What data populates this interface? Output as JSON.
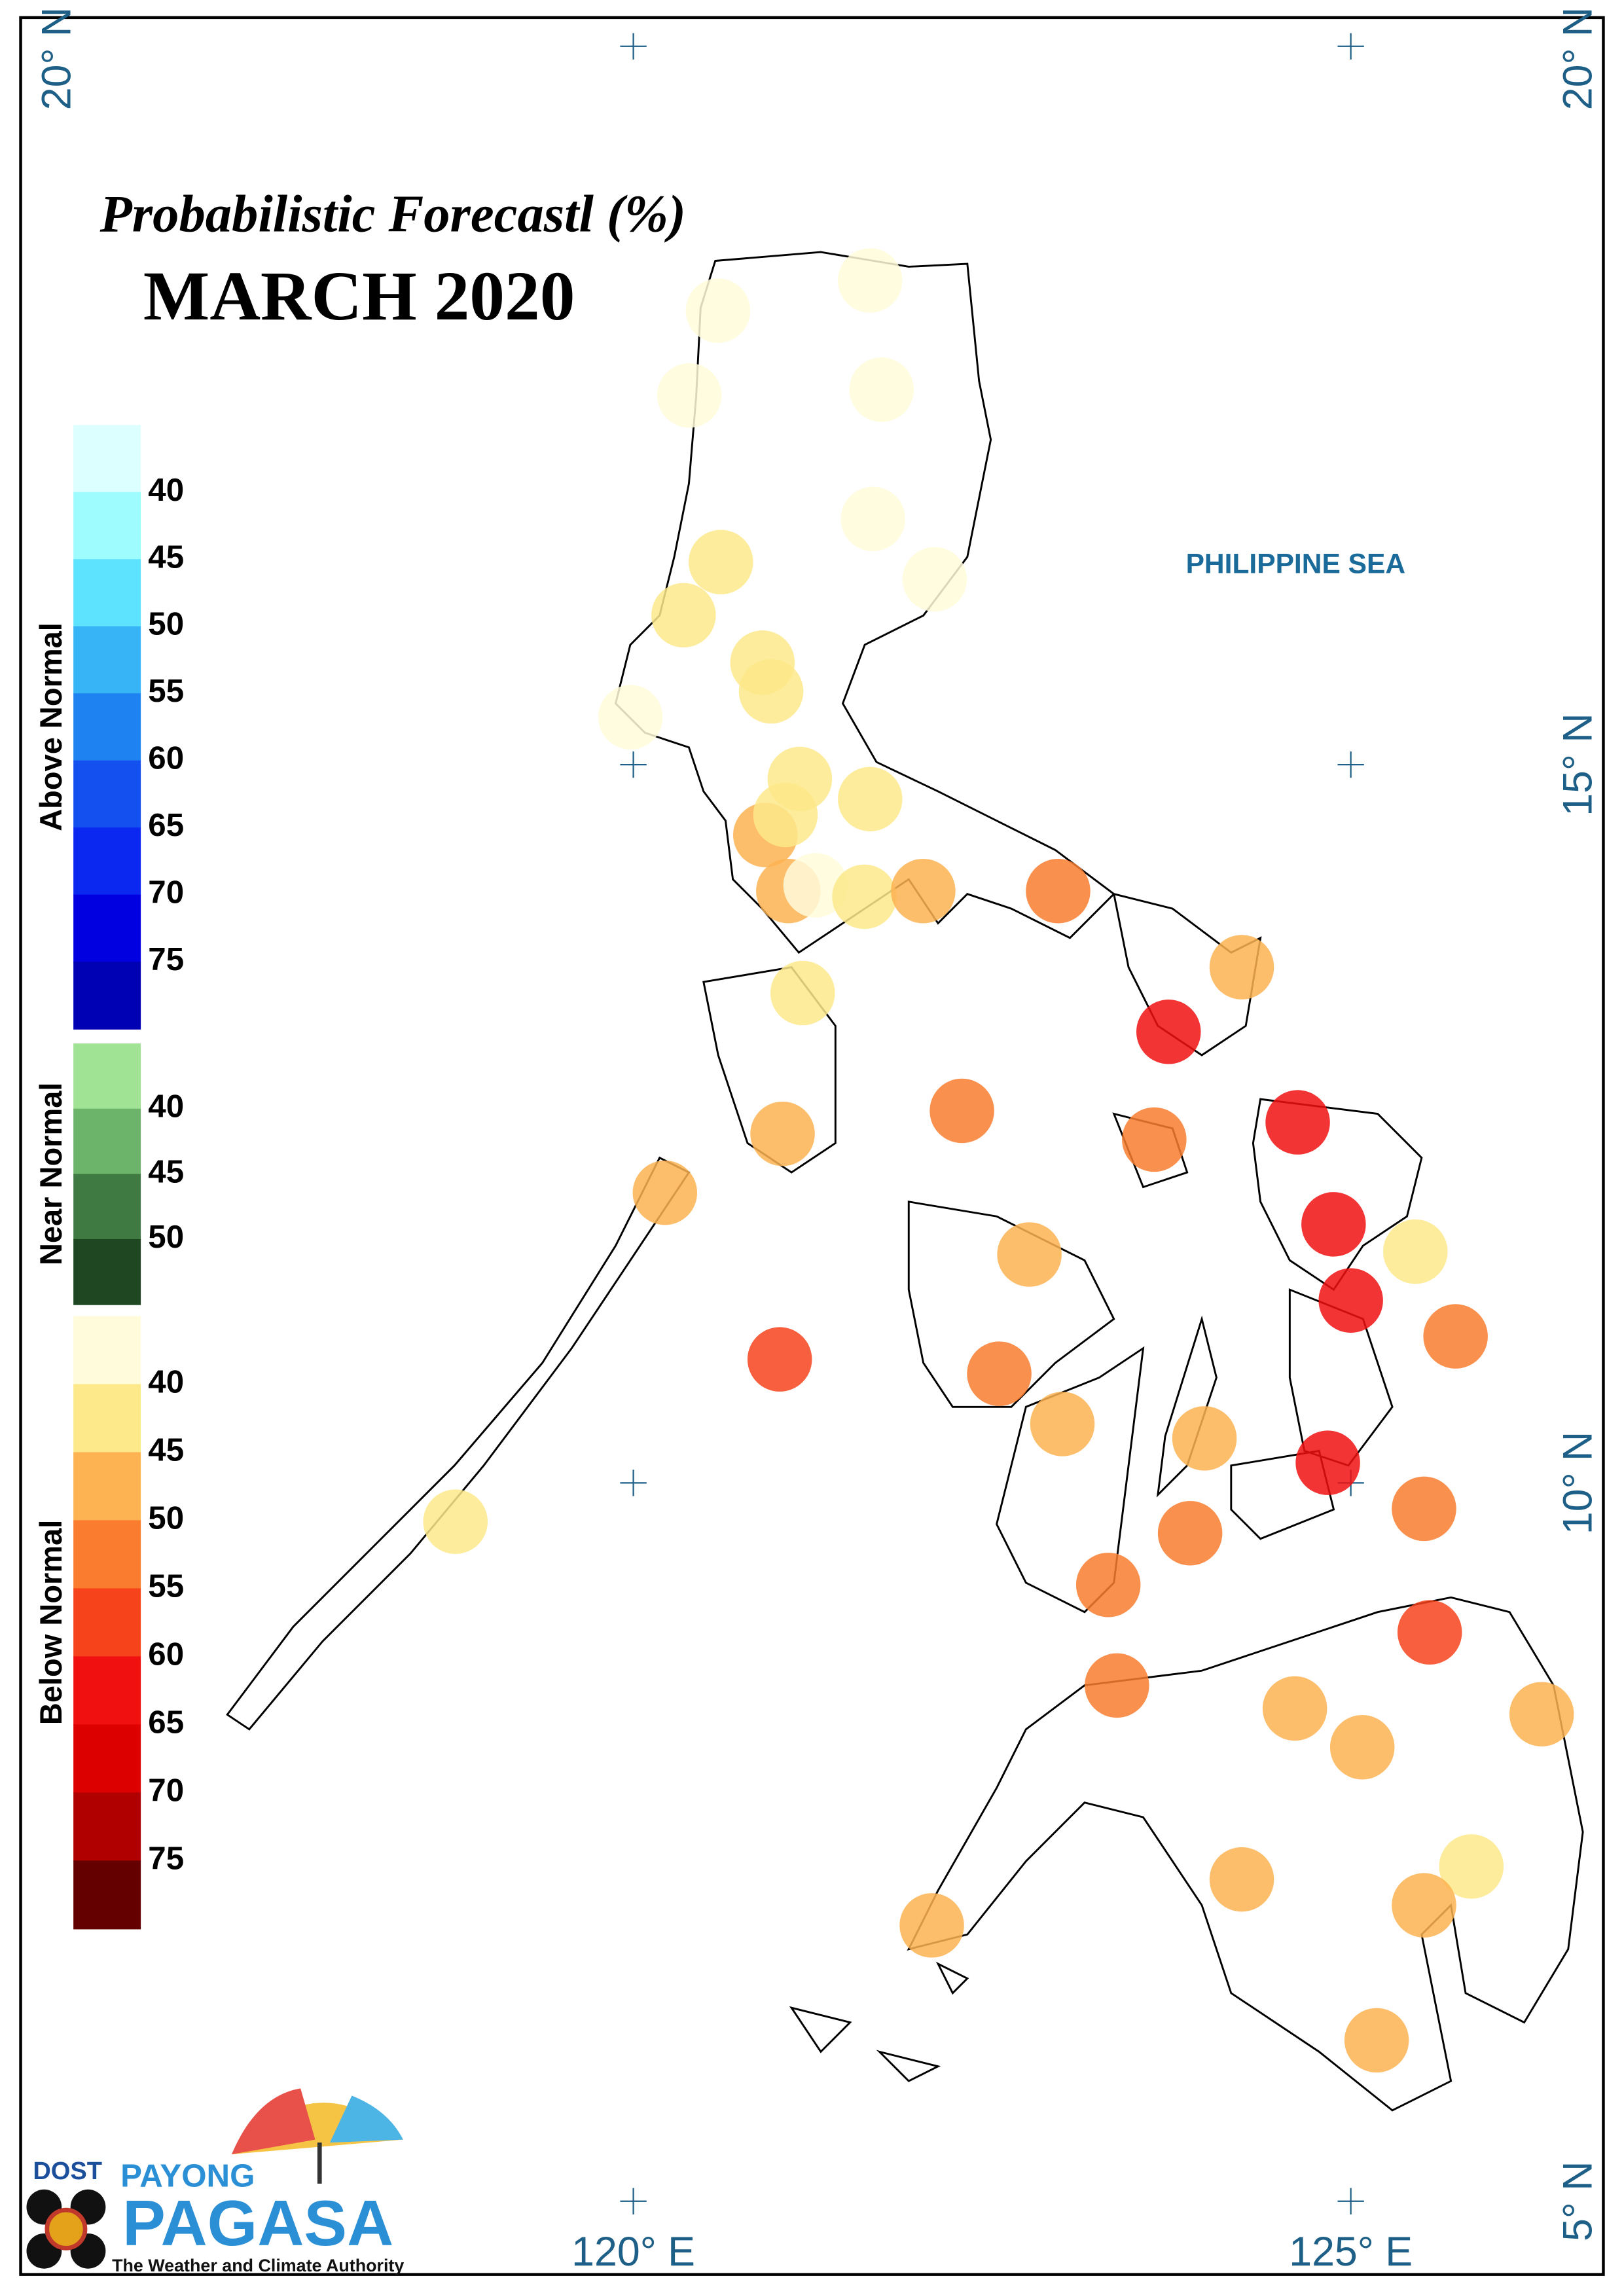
{
  "title": "Probabilistic Forecastl (%)",
  "subtitle": "MARCH 2020",
  "region_label": "PHILIPPINE SEA",
  "map": {
    "xlim": [
      115.73,
      126.76
    ],
    "ylim": [
      4.49,
      20.2
    ],
    "xticks": [
      {
        "value": 120,
        "label": "120° E"
      },
      {
        "value": 125,
        "label": "125° E"
      }
    ],
    "yticks": [
      {
        "value": 5,
        "label": "5° N"
      },
      {
        "value": 10,
        "label": "10° N"
      },
      {
        "value": 15,
        "label": "15° N"
      },
      {
        "value": 20,
        "label": "20° N"
      }
    ],
    "stations": [
      {
        "lon": 121.65,
        "lat": 18.37,
        "value": 38
      },
      {
        "lon": 120.59,
        "lat": 18.16,
        "value": 38
      },
      {
        "lon": 120.39,
        "lat": 17.57,
        "value": 38
      },
      {
        "lon": 121.73,
        "lat": 17.61,
        "value": 38
      },
      {
        "lon": 121.67,
        "lat": 16.71,
        "value": 38
      },
      {
        "lon": 122.1,
        "lat": 16.29,
        "value": 38
      },
      {
        "lon": 120.61,
        "lat": 16.41,
        "value": 42
      },
      {
        "lon": 120.35,
        "lat": 16.04,
        "value": 42
      },
      {
        "lon": 120.9,
        "lat": 15.71,
        "value": 42
      },
      {
        "lon": 120.96,
        "lat": 15.51,
        "value": 42
      },
      {
        "lon": 119.98,
        "lat": 15.33,
        "value": 38
      },
      {
        "lon": 121.16,
        "lat": 14.9,
        "value": 42
      },
      {
        "lon": 121.65,
        "lat": 14.76,
        "value": 42
      },
      {
        "lon": 120.92,
        "lat": 14.51,
        "value": 47
      },
      {
        "lon": 121.06,
        "lat": 14.65,
        "value": 42
      },
      {
        "lon": 121.08,
        "lat": 14.12,
        "value": 47
      },
      {
        "lon": 121.27,
        "lat": 14.16,
        "value": 38
      },
      {
        "lon": 121.61,
        "lat": 14.08,
        "value": 42
      },
      {
        "lon": 122.02,
        "lat": 14.12,
        "value": 47
      },
      {
        "lon": 122.96,
        "lat": 14.12,
        "value": 52
      },
      {
        "lon": 124.24,
        "lat": 13.59,
        "value": 47
      },
      {
        "lon": 123.73,
        "lat": 13.14,
        "value": 62
      },
      {
        "lon": 121.18,
        "lat": 13.41,
        "value": 42
      },
      {
        "lon": 122.29,
        "lat": 12.59,
        "value": 52
      },
      {
        "lon": 123.63,
        "lat": 12.39,
        "value": 52
      },
      {
        "lon": 124.63,
        "lat": 12.51,
        "value": 62
      },
      {
        "lon": 121.04,
        "lat": 12.43,
        "value": 47
      },
      {
        "lon": 120.22,
        "lat": 12.02,
        "value": 47
      },
      {
        "lon": 124.88,
        "lat": 11.8,
        "value": 62
      },
      {
        "lon": 125.45,
        "lat": 11.61,
        "value": 42
      },
      {
        "lon": 125.0,
        "lat": 11.27,
        "value": 62
      },
      {
        "lon": 122.76,
        "lat": 11.59,
        "value": 47
      },
      {
        "lon": 121.02,
        "lat": 10.86,
        "value": 57
      },
      {
        "lon": 125.73,
        "lat": 11.02,
        "value": 52
      },
      {
        "lon": 122.55,
        "lat": 10.76,
        "value": 52
      },
      {
        "lon": 122.99,
        "lat": 10.41,
        "value": 47
      },
      {
        "lon": 123.98,
        "lat": 10.31,
        "value": 47
      },
      {
        "lon": 124.84,
        "lat": 10.14,
        "value": 62
      },
      {
        "lon": 125.51,
        "lat": 9.82,
        "value": 52
      },
      {
        "lon": 123.88,
        "lat": 9.65,
        "value": 52
      },
      {
        "lon": 118.76,
        "lat": 9.73,
        "value": 42
      },
      {
        "lon": 123.31,
        "lat": 9.29,
        "value": 52
      },
      {
        "lon": 125.55,
        "lat": 8.96,
        "value": 57
      },
      {
        "lon": 123.37,
        "lat": 8.59,
        "value": 52
      },
      {
        "lon": 124.61,
        "lat": 8.43,
        "value": 47
      },
      {
        "lon": 125.08,
        "lat": 8.16,
        "value": 47
      },
      {
        "lon": 126.33,
        "lat": 8.39,
        "value": 47
      },
      {
        "lon": 124.24,
        "lat": 7.24,
        "value": 47
      },
      {
        "lon": 125.84,
        "lat": 7.33,
        "value": 42
      },
      {
        "lon": 125.51,
        "lat": 7.06,
        "value": 47
      },
      {
        "lon": 122.08,
        "lat": 6.92,
        "value": 47
      },
      {
        "lon": 125.18,
        "lat": 6.12,
        "value": 47
      }
    ]
  },
  "legend": [
    {
      "name": "Above Normal",
      "ticks": [
        40,
        45,
        50,
        55,
        60,
        65,
        70,
        75
      ],
      "colors": [
        "#dcffff",
        "#9efcff",
        "#5ee3ff",
        "#36b4f5",
        "#1e82f0",
        "#1450f0",
        "#0a28f0",
        "#0000e0",
        "#0000b4"
      ]
    },
    {
      "name": "Near Normal",
      "ticks": [
        40,
        45,
        50
      ],
      "colors": [
        "#a0e394",
        "#6cb46a",
        "#3f7a43",
        "#1e4722"
      ]
    },
    {
      "name": "Below Normal",
      "ticks": [
        40,
        45,
        50,
        55,
        60,
        65,
        70,
        75
      ],
      "colors": [
        "#fffbdb",
        "#fde98a",
        "#fdb352",
        "#f97c2f",
        "#f6431c",
        "#f01010",
        "#dd0000",
        "#b00000",
        "#640000"
      ]
    }
  ],
  "logo": {
    "agency": "DOST",
    "brand_top": "PAYONG",
    "brand": "PAGASA",
    "tagline": "The Weather and Climate Authority"
  }
}
